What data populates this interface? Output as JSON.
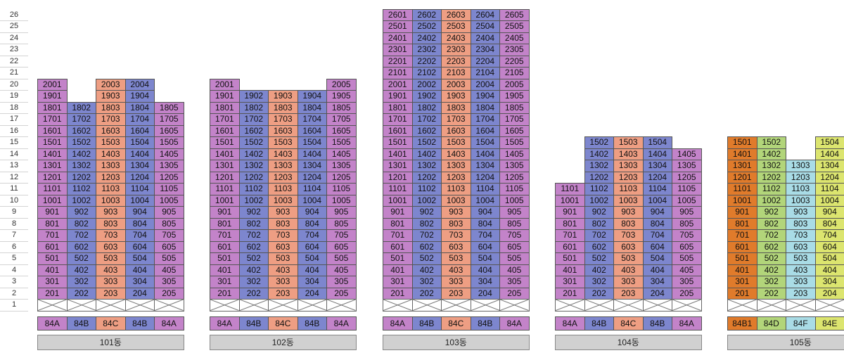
{
  "floor_labels": [
    "1",
    "2",
    "3",
    "4",
    "5",
    "6",
    "7",
    "8",
    "9",
    "10",
    "11",
    "12",
    "13",
    "14",
    "15",
    "16",
    "17",
    "18",
    "19",
    "20",
    "21",
    "22",
    "23",
    "24",
    "25",
    "26"
  ],
  "colors": {
    "84A": "#c383c9",
    "84B": "#7d86ce",
    "84C": "#ee9e83",
    "84B1": "#e07b2b",
    "84D": "#b2d57a",
    "84F": "#a9dce6",
    "84E": "#dce56f"
  },
  "buildings": [
    {
      "name": "101동",
      "types": [
        "84A",
        "84B",
        "84C",
        "84B",
        "84A"
      ],
      "units": [
        {
          "line": 1,
          "from": 2,
          "to": 20
        },
        {
          "line": 2,
          "from": 2,
          "to": 18
        },
        {
          "line": 3,
          "from": 2,
          "to": 20
        },
        {
          "line": 4,
          "from": 2,
          "to": 20
        },
        {
          "line": 5,
          "from": 2,
          "to": 18
        }
      ]
    },
    {
      "name": "102동",
      "types": [
        "84A",
        "84B",
        "84C",
        "84B",
        "84A"
      ],
      "units": [
        {
          "line": 1,
          "from": 2,
          "to": 20
        },
        {
          "line": 2,
          "from": 2,
          "to": 19
        },
        {
          "line": 3,
          "from": 2,
          "to": 19
        },
        {
          "line": 4,
          "from": 2,
          "to": 19
        },
        {
          "line": 5,
          "from": 2,
          "to": 20
        }
      ]
    },
    {
      "name": "103동",
      "types": [
        "84A",
        "84B",
        "84C",
        "84B",
        "84A"
      ],
      "units": [
        {
          "line": 1,
          "from": 2,
          "to": 26
        },
        {
          "line": 2,
          "from": 2,
          "to": 26
        },
        {
          "line": 3,
          "from": 2,
          "to": 26
        },
        {
          "line": 4,
          "from": 2,
          "to": 26
        },
        {
          "line": 5,
          "from": 2,
          "to": 26
        }
      ]
    },
    {
      "name": "104동",
      "types": [
        "84A",
        "84B",
        "84C",
        "84B",
        "84A"
      ],
      "units": [
        {
          "line": 1,
          "from": 2,
          "to": 11
        },
        {
          "line": 2,
          "from": 2,
          "to": 15
        },
        {
          "line": 3,
          "from": 2,
          "to": 15
        },
        {
          "line": 4,
          "from": 2,
          "to": 15
        },
        {
          "line": 5,
          "from": 2,
          "to": 14
        }
      ]
    },
    {
      "name": "105동",
      "types": [
        "84B1",
        "84D",
        "84F",
        "84E"
      ],
      "units": [
        {
          "line": 1,
          "from": 2,
          "to": 15
        },
        {
          "line": 2,
          "from": 2,
          "to": 15
        },
        {
          "line": 3,
          "from": 2,
          "to": 13
        },
        {
          "line": 4,
          "from": 2,
          "to": 15
        }
      ]
    }
  ]
}
